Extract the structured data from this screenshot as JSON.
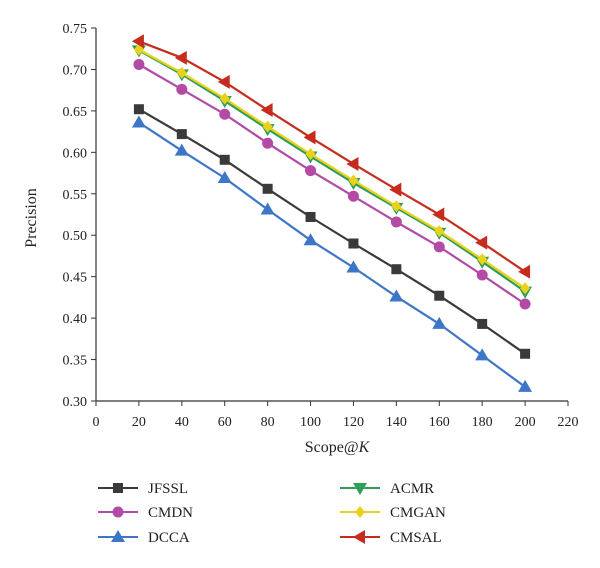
{
  "chart_data": {
    "type": "line",
    "title": "",
    "xlabel": "Scope@",
    "xlabel_italic": "K",
    "ylabel": "Precision",
    "xlim": [
      0,
      220
    ],
    "ylim": [
      0.3,
      0.75
    ],
    "xticks": [
      "0",
      "20",
      "40",
      "60",
      "80",
      "100",
      "120",
      "140",
      "160",
      "180",
      "200",
      "220"
    ],
    "yticks": [
      "0.30",
      "0.35",
      "0.40",
      "0.45",
      "0.50",
      "0.55",
      "0.60",
      "0.65",
      "0.70",
      "0.75"
    ],
    "grid": false,
    "legend_position": "bottom",
    "x": [
      20,
      40,
      60,
      80,
      100,
      120,
      140,
      160,
      180,
      200
    ],
    "series": [
      {
        "name": "JFSSL",
        "color": "#3a3a3a",
        "marker": "square",
        "values": [
          0.652,
          0.622,
          0.591,
          0.556,
          0.522,
          0.49,
          0.459,
          0.427,
          0.393,
          0.357
        ]
      },
      {
        "name": "CMDN",
        "color": "#b24aa6",
        "marker": "circle",
        "values": [
          0.706,
          0.676,
          0.646,
          0.611,
          0.578,
          0.547,
          0.516,
          0.486,
          0.452,
          0.417
        ]
      },
      {
        "name": "DCCA",
        "color": "#3d76c6",
        "marker": "triangle-up",
        "values": [
          0.636,
          0.602,
          0.569,
          0.531,
          0.494,
          0.461,
          0.426,
          0.393,
          0.355,
          0.317
        ]
      },
      {
        "name": "ACMR",
        "color": "#2e9e58",
        "marker": "triangle-down",
        "values": [
          0.723,
          0.694,
          0.662,
          0.628,
          0.595,
          0.563,
          0.533,
          0.503,
          0.468,
          0.432
        ]
      },
      {
        "name": "CMGAN",
        "color": "#e8d21c",
        "marker": "diamond",
        "values": [
          0.724,
          0.696,
          0.665,
          0.631,
          0.598,
          0.566,
          0.535,
          0.505,
          0.471,
          0.436
        ]
      },
      {
        "name": "CMSAL",
        "color": "#c62c1e",
        "marker": "triangle-left",
        "values": [
          0.734,
          0.714,
          0.685,
          0.651,
          0.618,
          0.586,
          0.555,
          0.525,
          0.491,
          0.456
        ]
      }
    ]
  }
}
